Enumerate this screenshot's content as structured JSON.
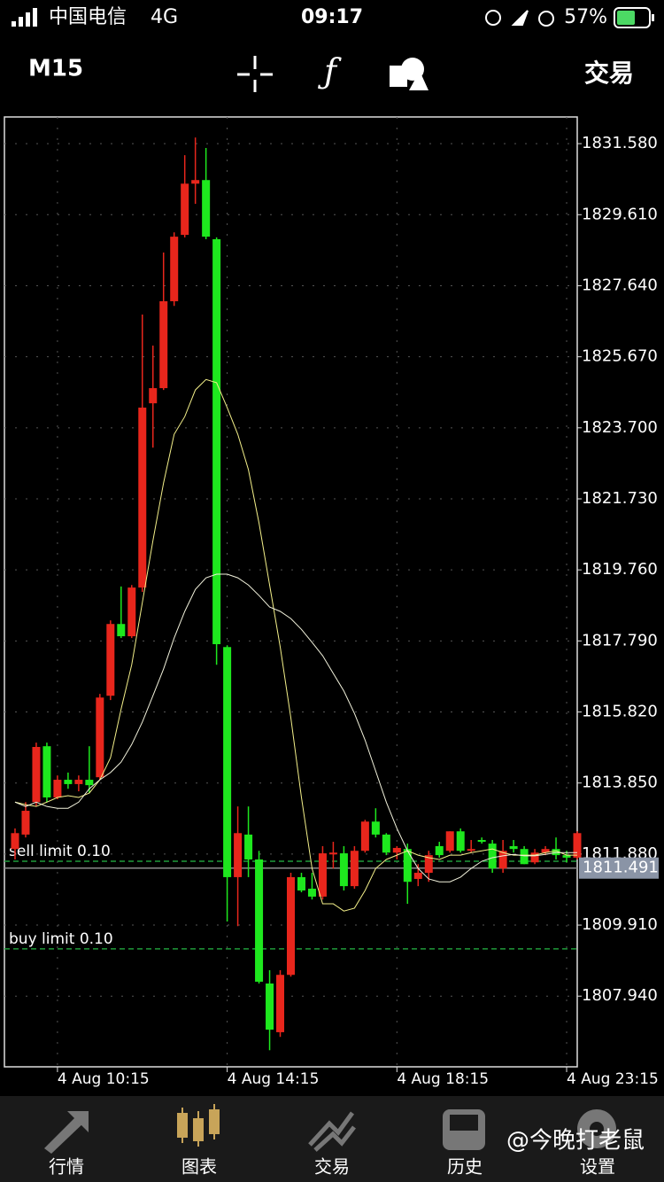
{
  "status_bar": {
    "carrier": "中国电信",
    "network": "4G",
    "time": "09:17",
    "battery": "57%"
  },
  "toolbar": {
    "timeframe": "M15",
    "trade": "交易"
  },
  "chart_data": {
    "type": "candlestick",
    "up_color": "#e8261c",
    "down_color": "#1ee81e",
    "grid": true,
    "ylim": [
      1805.98,
      1832.32
    ],
    "yticks": [
      {
        "value": 1831.58,
        "label": "1831.580"
      },
      {
        "value": 1829.61,
        "label": "1829.610"
      },
      {
        "value": 1827.64,
        "label": "1827.640"
      },
      {
        "value": 1825.67,
        "label": "1825.670"
      },
      {
        "value": 1823.7,
        "label": "1823.700"
      },
      {
        "value": 1821.73,
        "label": "1821.730"
      },
      {
        "value": 1819.76,
        "label": "1819.760"
      },
      {
        "value": 1817.79,
        "label": "1817.790"
      },
      {
        "value": 1815.82,
        "label": "1815.820"
      },
      {
        "value": 1813.85,
        "label": "1813.850"
      },
      {
        "value": 1811.88,
        "label": "1811.880"
      },
      {
        "value": 1809.91,
        "label": "1809.910"
      },
      {
        "value": 1807.94,
        "label": "1807.940"
      }
    ],
    "xticks": [
      {
        "value": 4,
        "label": "4 Aug 10:15"
      },
      {
        "value": 20,
        "label": "4 Aug 14:15"
      },
      {
        "value": 36,
        "label": "4 Aug 18:15"
      },
      {
        "value": 52,
        "label": "4 Aug 23:15"
      }
    ],
    "ohlc": [
      [
        1812.02,
        1812.59,
        1811.73,
        1812.46
      ],
      [
        1812.42,
        1813.32,
        1812.34,
        1813.08
      ],
      [
        1813.32,
        1814.97,
        1813.2,
        1814.85
      ],
      [
        1814.87,
        1814.97,
        1813.32,
        1813.45
      ],
      [
        1813.45,
        1814.06,
        1813.4,
        1813.94
      ],
      [
        1813.94,
        1814.14,
        1813.69,
        1813.82
      ],
      [
        1813.82,
        1814.06,
        1813.62,
        1813.94
      ],
      [
        1813.94,
        1814.87,
        1813.57,
        1813.79
      ],
      [
        1814.01,
        1816.32,
        1813.94,
        1816.22
      ],
      [
        1816.27,
        1818.36,
        1816.15,
        1818.26
      ],
      [
        1818.26,
        1819.3,
        1817.87,
        1817.92
      ],
      [
        1817.92,
        1819.34,
        1817.87,
        1819.27
      ],
      [
        1819.27,
        1826.84,
        1819.15,
        1824.26
      ],
      [
        1824.38,
        1825.98,
        1823.15,
        1824.8
      ],
      [
        1824.8,
        1828.56,
        1824.75,
        1827.21
      ],
      [
        1827.21,
        1829.12,
        1827.08,
        1829.0
      ],
      [
        1829.05,
        1831.26,
        1828.98,
        1830.47
      ],
      [
        1830.47,
        1831.75,
        1829.91,
        1830.57
      ],
      [
        1830.57,
        1831.46,
        1828.93,
        1829.0
      ],
      [
        1828.93,
        1828.98,
        1817.13,
        1817.7
      ],
      [
        1817.62,
        1817.67,
        1810.01,
        1811.24
      ],
      [
        1811.24,
        1813.2,
        1809.88,
        1812.46
      ],
      [
        1812.42,
        1813.2,
        1811.24,
        1811.73
      ],
      [
        1811.73,
        1811.97,
        1808.29,
        1808.34
      ],
      [
        1808.29,
        1808.66,
        1806.44,
        1807.01
      ],
      [
        1806.94,
        1808.66,
        1806.81,
        1808.53
      ],
      [
        1808.53,
        1811.36,
        1808.48,
        1811.24
      ],
      [
        1811.24,
        1811.36,
        1810.82,
        1810.87
      ],
      [
        1810.92,
        1811.36,
        1810.62,
        1810.7
      ],
      [
        1810.7,
        1812.1,
        1810.62,
        1811.9
      ],
      [
        1811.9,
        1812.22,
        1811.48,
        1811.92
      ],
      [
        1811.9,
        1812.1,
        1810.87,
        1810.99
      ],
      [
        1810.99,
        1812.1,
        1810.92,
        1811.97
      ],
      [
        1811.97,
        1812.83,
        1811.92,
        1812.78
      ],
      [
        1812.78,
        1813.15,
        1812.34,
        1812.42
      ],
      [
        1812.42,
        1812.46,
        1811.85,
        1811.92
      ],
      [
        1811.92,
        1812.1,
        1811.73,
        1812.05
      ],
      [
        1812.02,
        1812.17,
        1810.5,
        1811.11
      ],
      [
        1811.19,
        1811.6,
        1810.99,
        1811.36
      ],
      [
        1811.36,
        1811.97,
        1811.11,
        1811.85
      ],
      [
        1812.1,
        1812.22,
        1811.78,
        1811.85
      ],
      [
        1811.97,
        1812.51,
        1811.92,
        1812.51
      ],
      [
        1812.51,
        1812.59,
        1811.92,
        1811.97
      ],
      [
        1811.97,
        1812.27,
        1811.92,
        1812.02
      ],
      [
        1812.27,
        1812.34,
        1812.17,
        1812.22
      ],
      [
        1812.17,
        1812.27,
        1811.36,
        1811.48
      ],
      [
        1811.48,
        1812.27,
        1811.36,
        1811.97
      ],
      [
        1812.1,
        1812.27,
        1811.92,
        1812.02
      ],
      [
        1812.02,
        1812.1,
        1811.6,
        1811.6
      ],
      [
        1811.65,
        1812.02,
        1811.6,
        1811.92
      ],
      [
        1811.92,
        1812.1,
        1811.85,
        1812.02
      ],
      [
        1812.02,
        1812.34,
        1811.73,
        1811.85
      ],
      [
        1811.85,
        1811.97,
        1811.65,
        1811.78
      ],
      [
        1811.78,
        1812.51,
        1811.73,
        1812.46
      ]
    ],
    "series": [
      {
        "color": "#f4f08a",
        "values": [
          1813.32,
          1813.25,
          1813.2,
          1813.32,
          1813.45,
          1813.5,
          1813.45,
          1813.57,
          1813.94,
          1814.55,
          1815.9,
          1817.13,
          1818.85,
          1820.57,
          1822.17,
          1823.52,
          1824.01,
          1824.75,
          1825.04,
          1824.95,
          1824.26,
          1823.52,
          1822.54,
          1821.06,
          1819.34,
          1817.62,
          1815.66,
          1813.45,
          1811.48,
          1810.5,
          1810.5,
          1810.3,
          1810.38,
          1810.87,
          1811.48,
          1811.73,
          1811.85,
          1811.97,
          1811.85,
          1811.78,
          1811.73,
          1811.85,
          1811.85,
          1811.92,
          1811.97,
          1812.02,
          1811.92,
          1811.85,
          1811.85,
          1811.85,
          1811.92,
          1811.97,
          1811.85,
          1811.85
        ]
      },
      {
        "color": "#f2f2dc",
        "values": [
          1813.32,
          1813.2,
          1813.32,
          1813.2,
          1813.15,
          1813.15,
          1813.32,
          1813.69,
          1813.94,
          1814.14,
          1814.43,
          1814.92,
          1815.54,
          1816.27,
          1817.01,
          1817.87,
          1818.61,
          1819.22,
          1819.54,
          1819.64,
          1819.64,
          1819.54,
          1819.34,
          1819.05,
          1818.73,
          1818.61,
          1818.41,
          1818.11,
          1817.75,
          1817.38,
          1816.89,
          1816.4,
          1815.78,
          1815.04,
          1814.18,
          1813.32,
          1812.59,
          1811.97,
          1811.48,
          1811.19,
          1811.11,
          1811.11,
          1811.24,
          1811.48,
          1811.68,
          1811.78,
          1811.83,
          1811.87,
          1811.83,
          1811.83,
          1811.87,
          1811.92,
          1811.92,
          1811.92
        ]
      }
    ],
    "orders": [
      {
        "label": "sell limit 0.10",
        "price": 1811.68
      },
      {
        "label": "buy limit 0.10",
        "price": 1809.25
      }
    ],
    "current_price": {
      "value": 1811.491,
      "label": "1811.491"
    }
  },
  "tab_bar": {
    "tabs": [
      "行情",
      "图表",
      "交易",
      "历史",
      "设置"
    ],
    "active": 1
  },
  "watermark": "@今晚打老鼠"
}
